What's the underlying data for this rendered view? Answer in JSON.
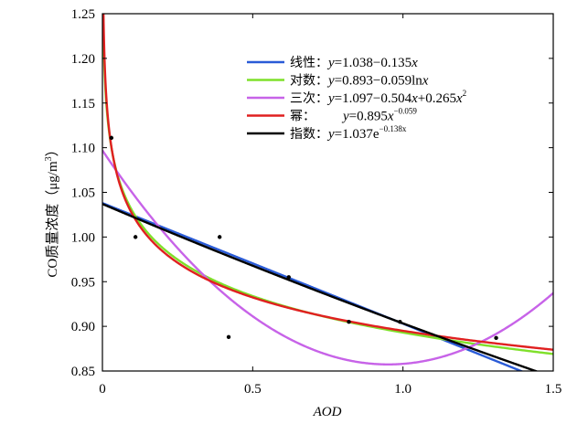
{
  "chart_data": {
    "type": "scatter",
    "title": "",
    "xlabel": "AOD",
    "ylabel": "CO质量浓度（μg/m³）",
    "ylabel_parts": {
      "text": "CO质量浓度（μg/m",
      "sup": "3",
      "tail": "）"
    },
    "xlim": [
      0,
      1.5
    ],
    "ylim": [
      0.85,
      1.25
    ],
    "xticks": [
      0,
      0.5,
      1.0,
      1.5
    ],
    "xtick_labels": [
      "0",
      "0.5",
      "1.0",
      "1.5"
    ],
    "yticks": [
      0.85,
      0.9,
      0.95,
      1.0,
      1.05,
      1.1,
      1.15,
      1.2,
      1.25
    ],
    "ytick_labels": [
      "0.85",
      "0.90",
      "0.95",
      "1.00",
      "1.05",
      "1.10",
      "1.15",
      "1.20",
      "1.25"
    ],
    "grid": false,
    "legend_position": "top-right",
    "points": {
      "x": [
        0.03,
        0.11,
        0.39,
        0.42,
        0.62,
        0.82,
        0.99,
        1.31
      ],
      "y": [
        1.111,
        1.0,
        1.0,
        0.888,
        0.955,
        0.905,
        0.905,
        0.887
      ]
    },
    "series": [
      {
        "name": "线性",
        "model": "linear",
        "color": "#2a5bd7",
        "params": {
          "a": 1.038,
          "b": -0.135
        },
        "label": "线性：",
        "eq": [
          [
            "i",
            "y"
          ],
          [
            "n",
            "=1.038−0.135"
          ],
          [
            "i",
            "x"
          ]
        ]
      },
      {
        "name": "对数",
        "model": "log",
        "color": "#7fe02a",
        "params": {
          "a": 0.893,
          "b": -0.059
        },
        "label": "对数：",
        "eq": [
          [
            "i",
            "y"
          ],
          [
            "n",
            "=0.893−0.059ln"
          ],
          [
            "i",
            "x"
          ]
        ]
      },
      {
        "name": "三次",
        "model": "cubic",
        "color": "#c763e8",
        "params": {
          "a": 1.097,
          "b": -0.504,
          "c": 0.265
        },
        "label": "三次：",
        "eq": [
          [
            "i",
            "y"
          ],
          [
            "n",
            "=1.097−0.504"
          ],
          [
            "i",
            "x"
          ],
          [
            "n",
            "+0.265"
          ],
          [
            "i",
            "x"
          ],
          [
            "sup",
            "2"
          ]
        ]
      },
      {
        "name": "幂",
        "model": "power",
        "color": "#e02020",
        "params": {
          "a": 0.895,
          "b": -0.059
        },
        "label": "幂：",
        "eq": [
          [
            "i",
            "y"
          ],
          [
            "n",
            "=0.895"
          ],
          [
            "i",
            "x"
          ],
          [
            "sup",
            "−0.059"
          ]
        ]
      },
      {
        "name": "指数",
        "model": "exp",
        "color": "#000000",
        "params": {
          "a": 1.037,
          "b": -0.138
        },
        "label": "指数：",
        "eq": [
          [
            "i",
            "y"
          ],
          [
            "n",
            "=1.037e"
          ],
          [
            "sup",
            "−0.138x"
          ]
        ]
      }
    ]
  }
}
